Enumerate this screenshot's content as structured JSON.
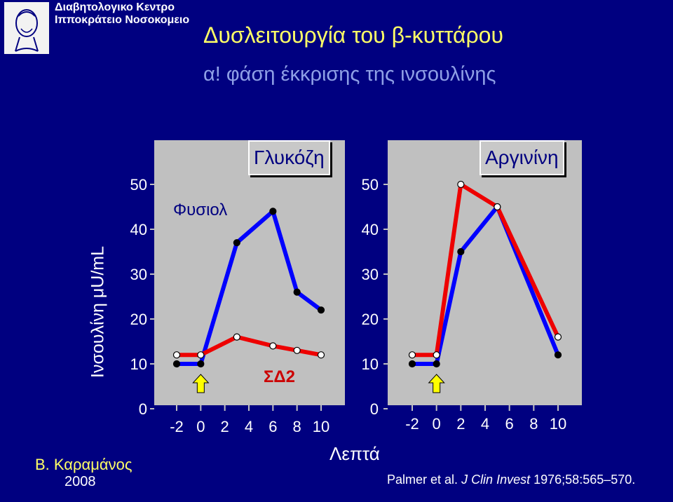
{
  "header": {
    "institute_line1": "Διαβητολογικο Κεντρο",
    "institute_line2": "Ιπποκράτειο Νοσοκομειο"
  },
  "title": "Δυσλειτουργία του β-κυττάρου",
  "subtitle": "α! φάση έκκρισης της ινσουλίνης",
  "ylabel": "Ινσουλίνη μU/mL",
  "xlabel": "Λεπτά",
  "author": "Β. Καραμάνος",
  "author_year": "2008",
  "citation": {
    "authors": "Palmer et al.",
    "journal": "J Clin Invest",
    "ref": "1976;58:565–570."
  },
  "colors": {
    "background": "#000080",
    "plot_bg": "#c0c0c0",
    "series_normal": "#ee0000",
    "series_t2d": "#0000ff",
    "arrow": "#ffff00"
  },
  "chart_data": [
    {
      "type": "line",
      "title": "Γλυκόζη",
      "xlim": [
        -2,
        10
      ],
      "ylim": [
        0,
        50
      ],
      "x_ticks": [
        -2,
        0,
        2,
        4,
        6,
        8,
        10
      ],
      "x_tick_labels": [
        "-2",
        "0",
        "2",
        "4",
        "6",
        "8",
        "10"
      ],
      "y_ticks": [
        0,
        10,
        20,
        30,
        40,
        50
      ],
      "y_tick_labels": [
        "0",
        "10",
        "20",
        "30",
        "40",
        "50"
      ],
      "stimulus_arrow_x": 0,
      "annotations": [
        {
          "text": "Φυσιολ",
          "near_series": "normal"
        },
        {
          "text": "ΣΔ2",
          "near_series": "t2d"
        }
      ],
      "series": [
        {
          "key": "t2d",
          "color": "#0000ff",
          "marker": "black",
          "x": [
            -2,
            0,
            3,
            6,
            8,
            10
          ],
          "y": [
            10,
            10,
            37,
            44,
            26,
            22
          ]
        },
        {
          "key": "normal",
          "color": "#ee0000",
          "marker": "white",
          "x": [
            -2,
            0,
            3,
            6,
            8,
            10
          ],
          "y": [
            12,
            12,
            16,
            14,
            13,
            12
          ]
        }
      ]
    },
    {
      "type": "line",
      "title": "Αργινίνη",
      "xlim": [
        -2,
        10
      ],
      "ylim": [
        0,
        50
      ],
      "x_ticks": [
        -2,
        0,
        2,
        4,
        6,
        8,
        10
      ],
      "x_tick_labels": [
        "-2",
        "0",
        "2",
        "4",
        "6",
        "8",
        "10"
      ],
      "y_ticks": [
        0,
        10,
        20,
        30,
        40,
        50
      ],
      "y_tick_labels": [
        "0",
        "10",
        "20",
        "30",
        "40",
        "50"
      ],
      "stimulus_arrow_x": 0,
      "series": [
        {
          "key": "t2d",
          "color": "#0000ff",
          "marker": "black",
          "x": [
            -2,
            0,
            2,
            5,
            10
          ],
          "y": [
            10,
            10,
            35,
            45,
            12
          ]
        },
        {
          "key": "normal",
          "color": "#ee0000",
          "marker": "white",
          "x": [
            -2,
            0,
            2,
            5,
            10
          ],
          "y": [
            12,
            12,
            50,
            45,
            16
          ]
        }
      ]
    }
  ]
}
